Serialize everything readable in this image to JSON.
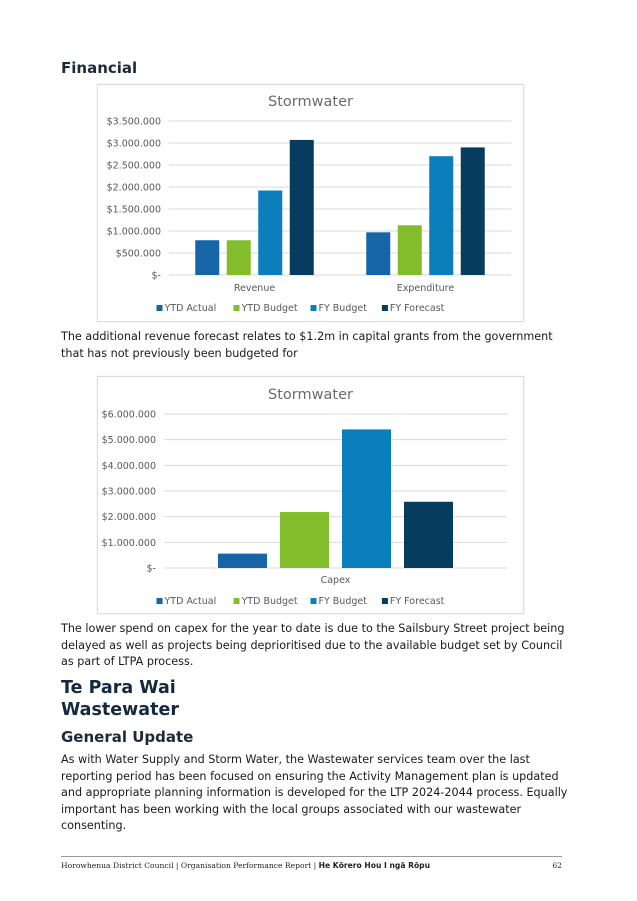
{
  "section_heading": "Financial",
  "revenue_chart": {
    "chart_data": {
      "type": "bar",
      "title": "Stormwater",
      "categories": [
        "Revenue",
        "Expenditure"
      ],
      "series": [
        {
          "name": "YTD Actual",
          "color": "#1565a7",
          "values": [
            790000,
            970000
          ]
        },
        {
          "name": "YTD Budget",
          "color": "#84bd2b",
          "values": [
            790000,
            1130000
          ]
        },
        {
          "name": "FY Budget",
          "color": "#0a7fbc",
          "values": [
            1920000,
            2700000
          ]
        },
        {
          "name": "FY Forecast",
          "color": "#063d5e",
          "values": [
            3070000,
            2900000
          ]
        }
      ],
      "ylim": [
        0,
        3500000
      ],
      "yticks": [
        0,
        500000,
        1000000,
        1500000,
        2000000,
        2500000,
        3000000,
        3500000
      ],
      "ytick_labels": [
        "$-",
        "$500.000",
        "$1.000.000",
        "$1.500.000",
        "$2.000.000",
        "$2.500.000",
        "$3.000.000",
        "$3.500.000"
      ],
      "legend": "bottom",
      "grid": true
    }
  },
  "revenue_note": "The additional revenue forecast relates to $1.2m in capital grants from the government that has not previously been budgeted for",
  "capex_chart": {
    "chart_data": {
      "type": "bar",
      "title": "Stormwater",
      "categories": [
        "Capex"
      ],
      "series": [
        {
          "name": "YTD Actual",
          "color": "#1565a7",
          "values": [
            560000
          ]
        },
        {
          "name": "YTD Budget",
          "color": "#84bd2b",
          "values": [
            2180000
          ]
        },
        {
          "name": "FY Budget",
          "color": "#0a7fbc",
          "values": [
            5400000
          ]
        },
        {
          "name": "FY Forecast",
          "color": "#063d5e",
          "values": [
            2580000
          ]
        }
      ],
      "ylim": [
        0,
        6000000
      ],
      "yticks": [
        0,
        1000000,
        2000000,
        3000000,
        4000000,
        5000000,
        6000000
      ],
      "ytick_labels": [
        "$-",
        "$1.000.000",
        "$2.000.000",
        "$3.000.000",
        "$4.000.000",
        "$5.000.000",
        "$6.000.000"
      ],
      "legend": "bottom",
      "grid": true
    }
  },
  "capex_note": "The lower spend on capex for the year to date is due to the Sailsbury Street project being delayed as well as projects being deprioritised due to the available budget set by Council as part of LTPA process.",
  "maori_heading": "Te Para Wai",
  "english_heading": "Wastewater",
  "general_update_heading": "General Update",
  "general_update_text": "As with Water Supply and Storm Water, the Wastewater services team over the last reporting period has been focused on ensuring the Activity Management plan is updated and appropriate planning information is developed for the LTP 2024-2044 process. Equally important has been working with the local groups associated with our wastewater consenting.",
  "footer": {
    "left": "Horowhenua District Council | Organisation Performance Report | ",
    "bold": "He Kōrero Hou I ngā Rōpu",
    "page": "62"
  }
}
